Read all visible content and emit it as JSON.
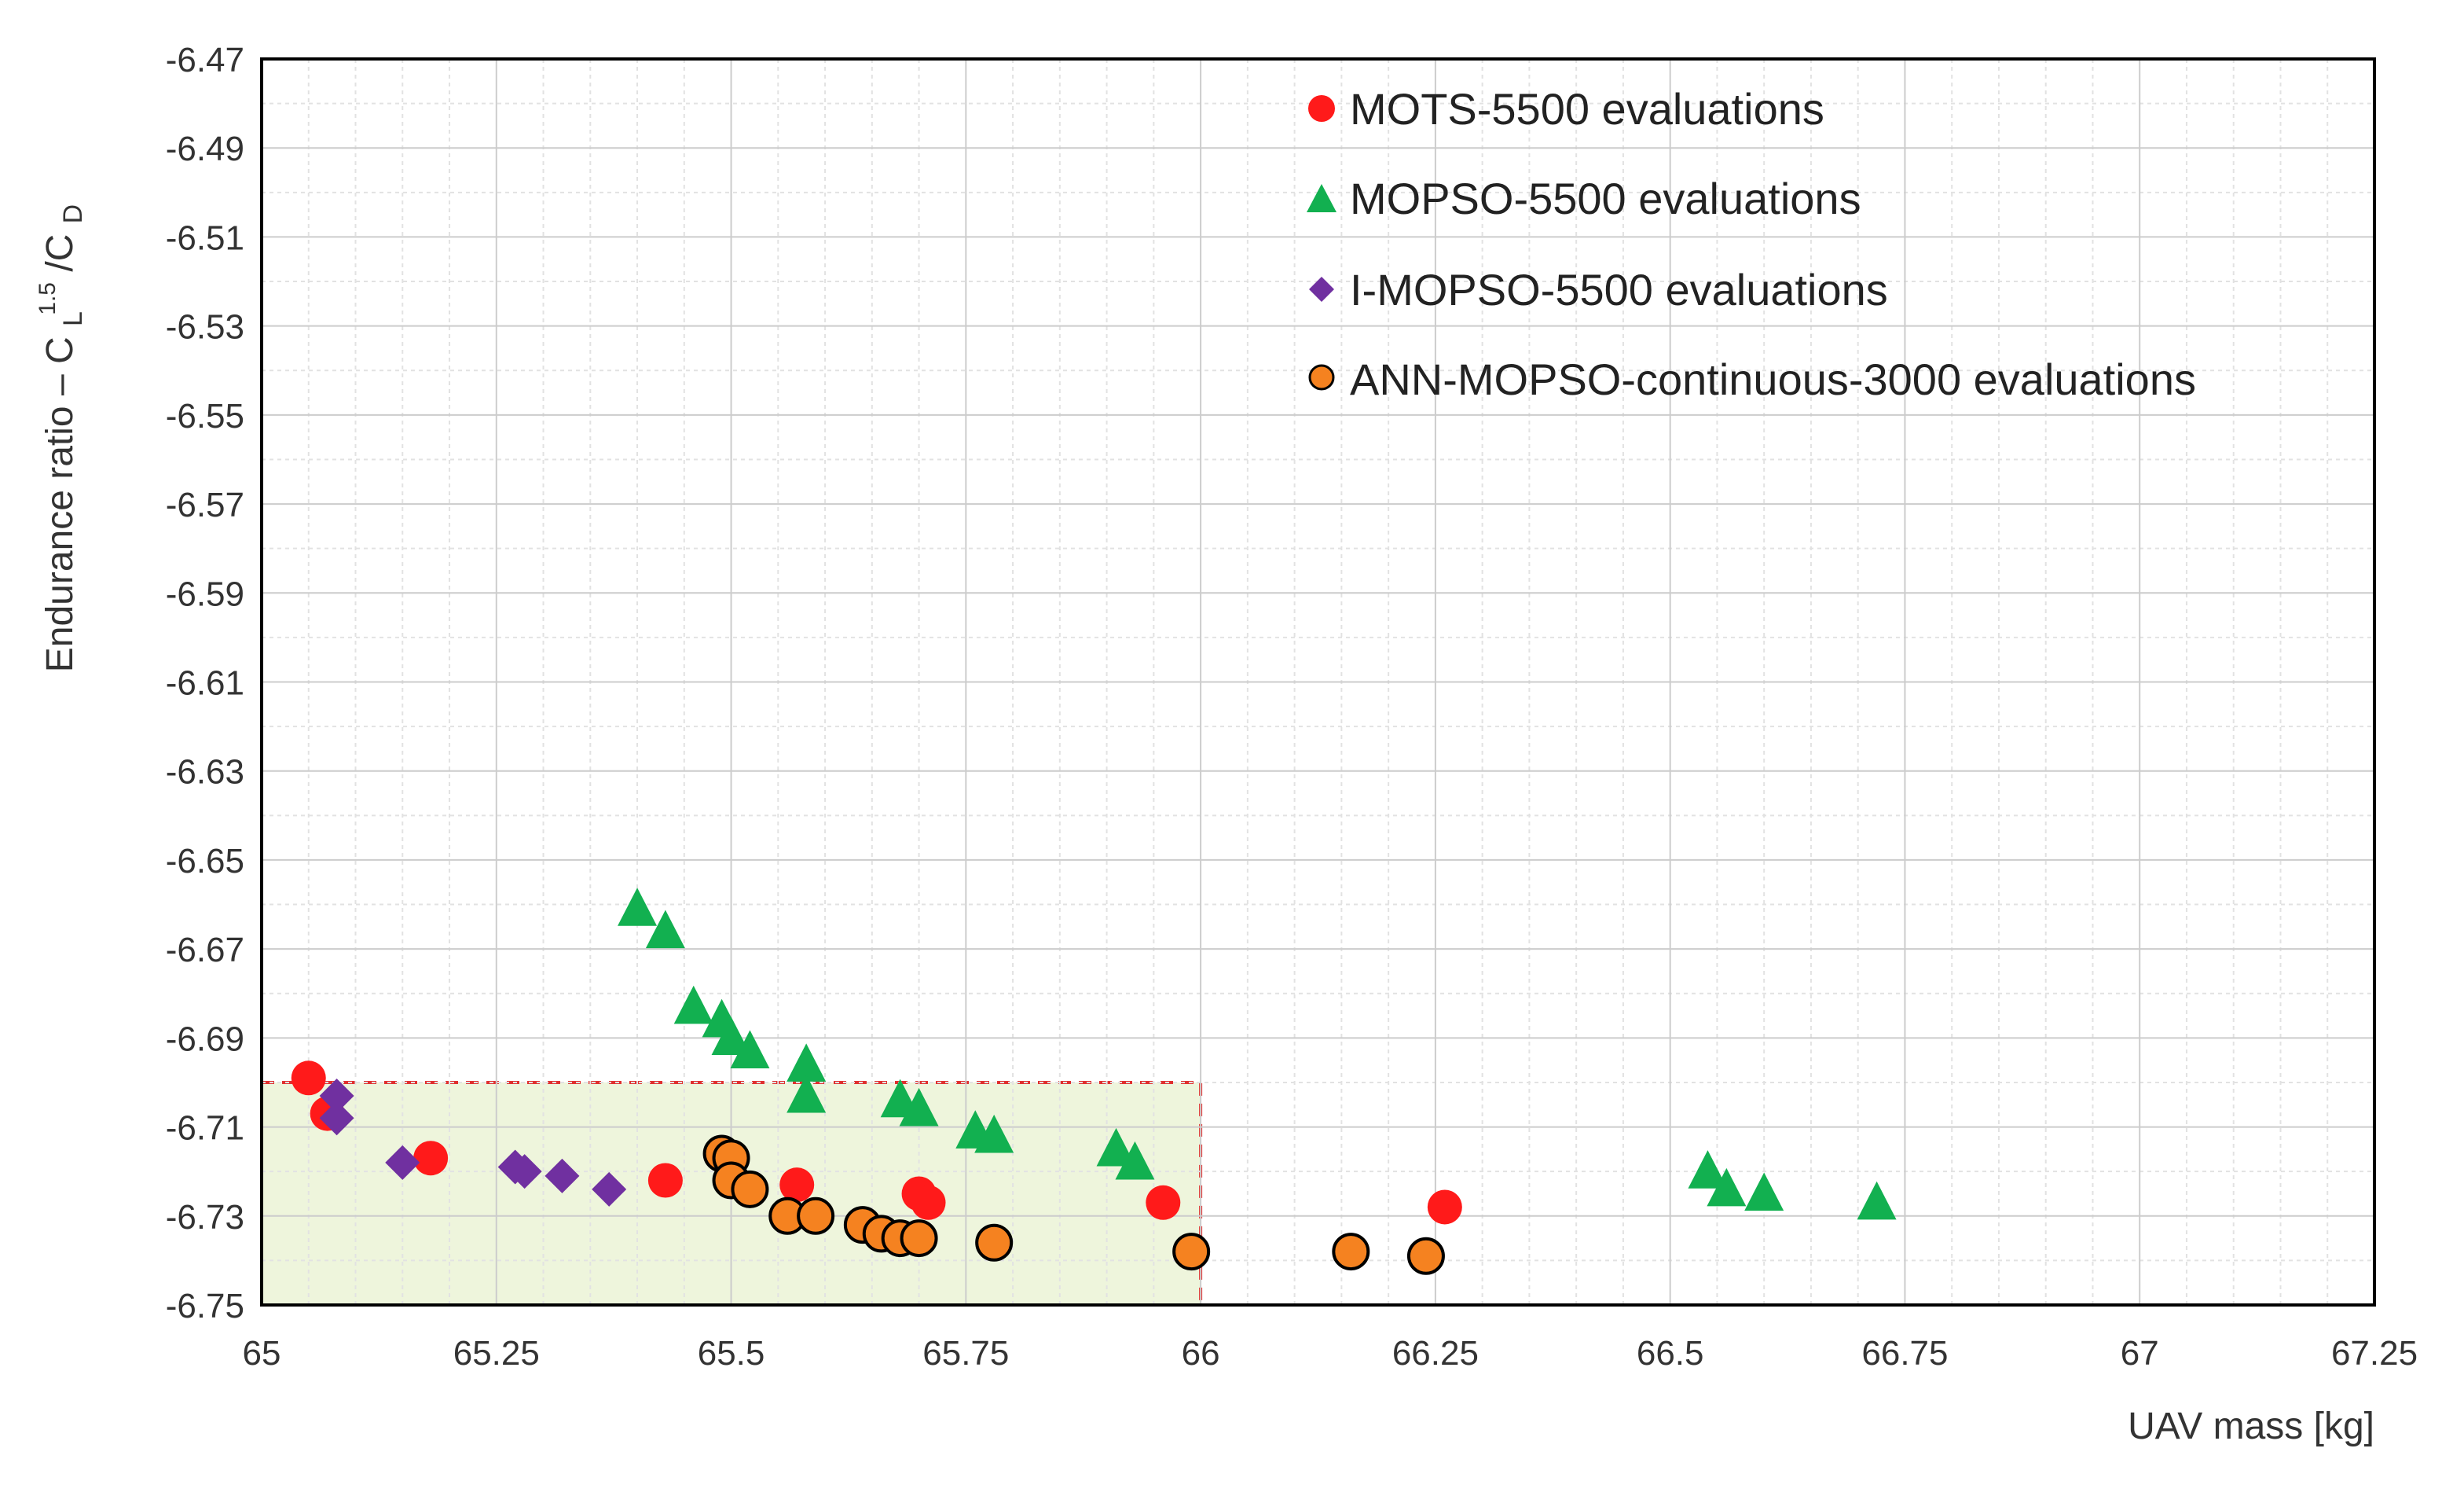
{
  "chart_data": {
    "type": "scatter",
    "xlabel": "UAV mass [kg]",
    "ylabel_parts": {
      "prefix": "Endurance ratio – C",
      "sub_L": "L",
      "sup": "1.5",
      "slash": " /C",
      "sub_D": "D"
    },
    "xlim": [
      65,
      67.25
    ],
    "ylim": [
      -6.75,
      -6.47
    ],
    "x_ticks": [
      "65",
      "65.25",
      "65.5",
      "65.75",
      "66",
      "66.25",
      "66.5",
      "66.75",
      "67",
      "67.25"
    ],
    "y_ticks": [
      "-6.47",
      "-6.49",
      "-6.51",
      "-6.53",
      "-6.55",
      "-6.57",
      "-6.59",
      "-6.61",
      "-6.63",
      "-6.65",
      "-6.67",
      "-6.69",
      "-6.71",
      "-6.73",
      "-6.75"
    ],
    "grid": true,
    "legend_position": "top-right",
    "highlight_region": {
      "x": [
        65,
        66
      ],
      "y": [
        -6.75,
        -6.7
      ],
      "fill": "#eef5dc",
      "border": "#e03030"
    },
    "series": [
      {
        "name": "MOTS-5500 evaluations",
        "marker": "circle",
        "color": "#ff1a1a",
        "points": [
          [
            65.05,
            -6.699
          ],
          [
            65.07,
            -6.707
          ],
          [
            65.18,
            -6.717
          ],
          [
            65.43,
            -6.722
          ],
          [
            65.57,
            -6.723
          ],
          [
            65.7,
            -6.725
          ],
          [
            65.71,
            -6.727
          ],
          [
            65.96,
            -6.727
          ],
          [
            66.26,
            -6.728
          ]
        ]
      },
      {
        "name": "MOPSO-5500 evaluations",
        "marker": "triangle",
        "color": "#12b050",
        "points": [
          [
            65.4,
            -6.661
          ],
          [
            65.43,
            -6.666
          ],
          [
            65.46,
            -6.683
          ],
          [
            65.49,
            -6.686
          ],
          [
            65.5,
            -6.69
          ],
          [
            65.52,
            -6.693
          ],
          [
            65.58,
            -6.696
          ],
          [
            65.58,
            -6.703
          ],
          [
            65.68,
            -6.704
          ],
          [
            65.7,
            -6.706
          ],
          [
            65.76,
            -6.711
          ],
          [
            65.78,
            -6.712
          ],
          [
            65.91,
            -6.715
          ],
          [
            65.93,
            -6.718
          ],
          [
            66.54,
            -6.72
          ],
          [
            66.56,
            -6.724
          ],
          [
            66.6,
            -6.725
          ],
          [
            66.72,
            -6.727
          ]
        ]
      },
      {
        "name": "I-MOPSO-5500 evaluations",
        "marker": "diamond",
        "color": "#7030a0",
        "points": [
          [
            65.08,
            -6.703
          ],
          [
            65.08,
            -6.708
          ],
          [
            65.15,
            -6.718
          ],
          [
            65.27,
            -6.719
          ],
          [
            65.28,
            -6.72
          ],
          [
            65.32,
            -6.721
          ],
          [
            65.37,
            -6.724
          ]
        ]
      },
      {
        "name": "ANN-MOPSO-continuous-3000 evaluations",
        "marker": "circle-outlined",
        "color": "#f58220",
        "points": [
          [
            65.49,
            -6.716
          ],
          [
            65.5,
            -6.717
          ],
          [
            65.5,
            -6.722
          ],
          [
            65.52,
            -6.724
          ],
          [
            65.56,
            -6.73
          ],
          [
            65.59,
            -6.73
          ],
          [
            65.64,
            -6.732
          ],
          [
            65.66,
            -6.734
          ],
          [
            65.68,
            -6.735
          ],
          [
            65.7,
            -6.735
          ],
          [
            65.78,
            -6.736
          ],
          [
            65.99,
            -6.738
          ],
          [
            66.16,
            -6.738
          ],
          [
            66.24,
            -6.739
          ]
        ]
      }
    ]
  }
}
